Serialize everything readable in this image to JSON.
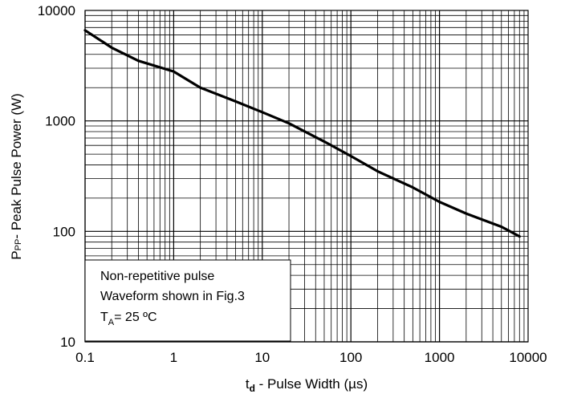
{
  "chart_data": {
    "type": "line",
    "x_scale": "log",
    "y_scale": "log",
    "xlim": [
      0.1,
      10000
    ],
    "ylim": [
      10,
      10000
    ],
    "grid": true,
    "x_tick_labels": [
      "0.1",
      "1",
      "10",
      "100",
      "1000",
      "10000"
    ],
    "y_tick_labels": [
      "10",
      "100",
      "1000",
      "10000"
    ],
    "xlabel_main": "t",
    "xlabel_sub": "d",
    "xlabel_rest": " - Pulse Width (µs)",
    "ylabel_main": "P",
    "ylabel_sub": "PP",
    "ylabel_rest": "- Peak Pulse Power (W)",
    "series": [
      {
        "x": [
          0.1,
          0.2,
          0.4,
          1,
          2,
          5,
          10,
          20,
          50,
          100,
          200,
          500,
          1000,
          2000,
          5000,
          8000
        ],
        "y": [
          6600,
          4600,
          3500,
          2800,
          2000,
          1500,
          1200,
          950,
          650,
          480,
          350,
          250,
          185,
          145,
          110,
          90
        ]
      }
    ],
    "annotation": {
      "line1": "Non-repetitive pulse",
      "line2": "Waveform shown in Fig.3",
      "line3_main": "T",
      "line3_sub": "A",
      "line3_rest": "= 25 ºC",
      "placement": "bottom-left"
    },
    "colors": {
      "line": "#000000",
      "grid": "#000000",
      "background": "#ffffff"
    }
  }
}
